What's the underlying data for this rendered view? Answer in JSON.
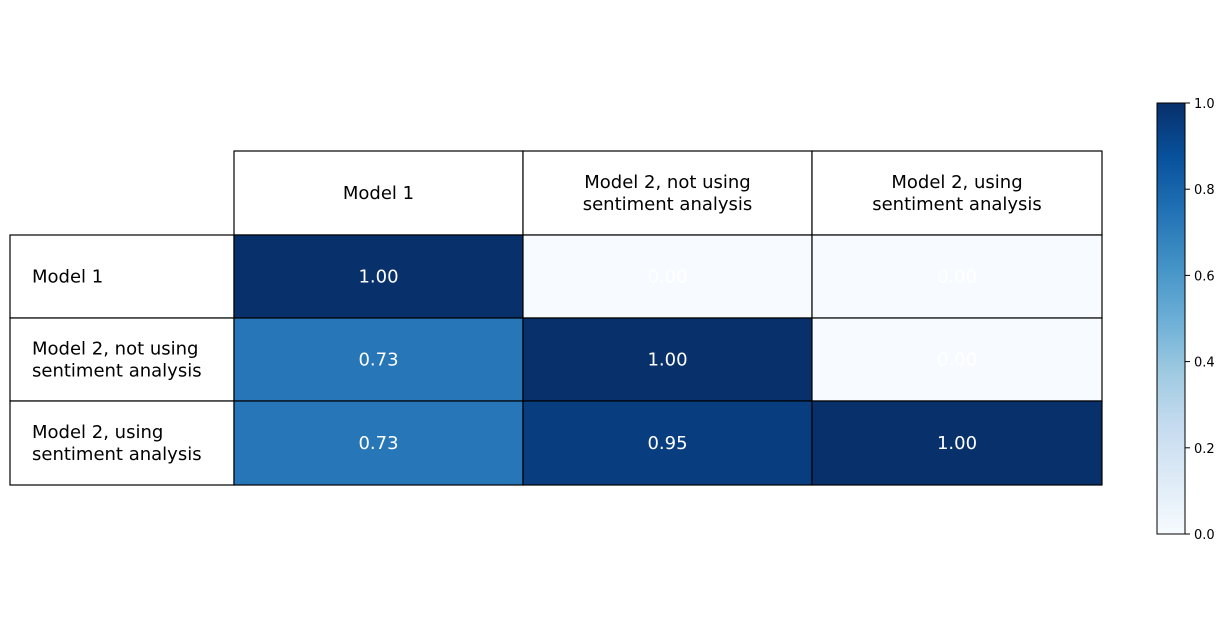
{
  "chart_data": {
    "type": "heatmap",
    "title": "",
    "columns": [
      "Model 1",
      "Model 2, not using\nsentiment analysis",
      "Model 2, using\nsentiment analysis"
    ],
    "rows": [
      "Model 1",
      "Model 2, not using\nsentiment analysis",
      "Model 2, using\nsentiment analysis"
    ],
    "values": [
      [
        1.0,
        0.0,
        0.0
      ],
      [
        0.73,
        1.0,
        0.0
      ],
      [
        0.73,
        0.95,
        1.0
      ]
    ],
    "value_labels": [
      [
        "1.00",
        "0.00",
        "0.00"
      ],
      [
        "0.73",
        "1.00",
        "0.00"
      ],
      [
        "0.73",
        "0.95",
        "1.00"
      ]
    ],
    "colormap": "Blues",
    "colorbar": {
      "range": [
        0.0,
        1.0
      ],
      "ticks": [
        "0.0",
        "0.2",
        "0.4",
        "0.6",
        "0.8",
        "1.0"
      ]
    },
    "value_text_color": "#ffffff",
    "grid": true,
    "legend": "colorbar right"
  }
}
